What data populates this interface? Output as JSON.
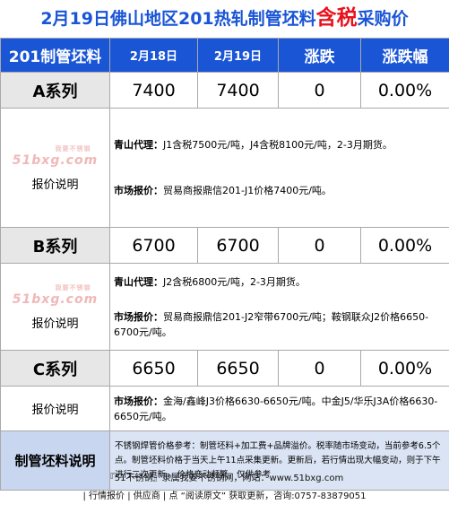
{
  "title": {
    "before": "2月19日佛山地区201热轧制管坯料",
    "accent": "含税",
    "after": "采购价"
  },
  "header": {
    "col1": "201制管坯料",
    "col2": "2月18日",
    "col3": "2月19日",
    "col4": "涨跌",
    "col5": "涨跌幅"
  },
  "watermark": {
    "top": "我要不锈钢",
    "brand": "51bxg.com"
  },
  "rows": [
    {
      "series": "A系列",
      "prev": "7400",
      "curr": "7400",
      "change": "0",
      "change_pct": "0.00%",
      "note_label": "报价说明",
      "note_1_key": "青山代理：",
      "note_1_val": "J1含税7500元/吨，J4含税8100元/吨，2-3月期货。",
      "note_2_key": "市场报价：",
      "note_2_val": "贸易商报鼎信201-J1价格7400元/吨。"
    },
    {
      "series": "B系列",
      "prev": "6700",
      "curr": "6700",
      "change": "0",
      "change_pct": "0.00%",
      "note_label": "报价说明",
      "note_1_key": "青山代理：",
      "note_1_val": "J2含税6800元/吨，2-3月期货。",
      "note_2_key": "市场报价：",
      "note_2_val": "贸易商报鼎信201-J2窄带6700元/吨；鞍钢联众J2价格6650-6700元/吨。"
    },
    {
      "series": "C系列",
      "prev": "6650",
      "curr": "6650",
      "change": "0",
      "change_pct": "0.00%",
      "note_label": "报价说明",
      "note_1_key": "市场报价：",
      "note_1_val": "金海/鑫峰J3价格6630-6650元/吨。中金J5/华乐J3A价格6630-6650元/吨。"
    }
  ],
  "footer_note": {
    "label": "制管坯料说明",
    "text": "不锈钢焊管价格参考：制管坯料+加工费+品牌溢价。税率随市场变动，当前参考6.5个点。制管坯料价格于当天上午11点采集更新。更新后，若行情出现大幅变动，则于下午进行二次更新 。价格变动频繁，仅供参考"
  },
  "footer": {
    "line1": "『51不锈钢』隶属我要不锈钢网，网站：www.51bxg.com",
    "line2": "| 行情报价 | 供应商 | 点 “阅读原文” 获取更新，咨询:0757-83879051"
  }
}
